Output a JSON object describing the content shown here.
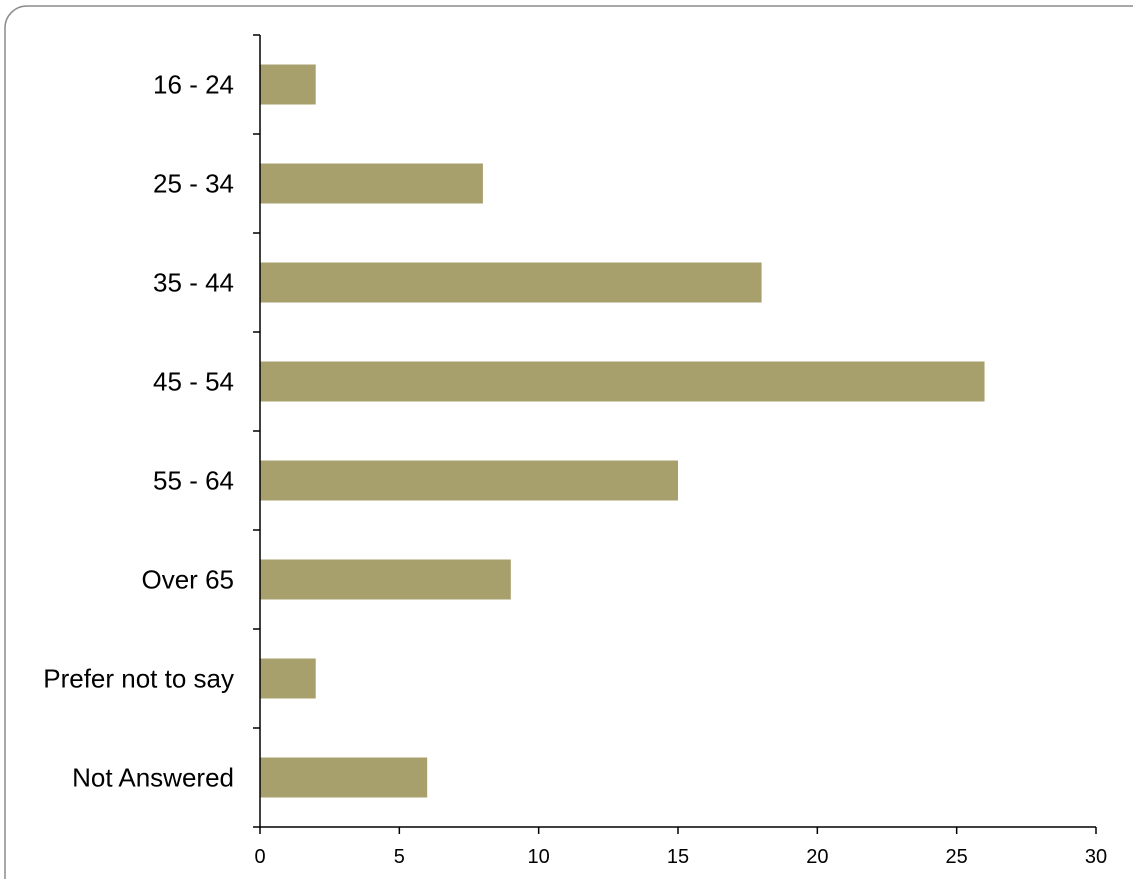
{
  "chart_data": {
    "type": "bar",
    "orientation": "horizontal",
    "categories": [
      "16 - 24",
      "25 - 34",
      "35 - 44",
      "45 - 54",
      "55 - 64",
      "Over 65",
      "Prefer not to say",
      "Not Answered"
    ],
    "values": [
      2,
      8,
      18,
      26,
      15,
      9,
      2,
      6
    ],
    "title": "",
    "xlabel": "",
    "ylabel": "",
    "xlim": [
      0,
      30
    ],
    "x_ticks": [
      0,
      5,
      10,
      15,
      20,
      25,
      30
    ],
    "grid": false,
    "legend": "none"
  },
  "colors": {
    "bar": "#A8A06C",
    "axis": "#000000",
    "frame": "#8C8C8C"
  }
}
